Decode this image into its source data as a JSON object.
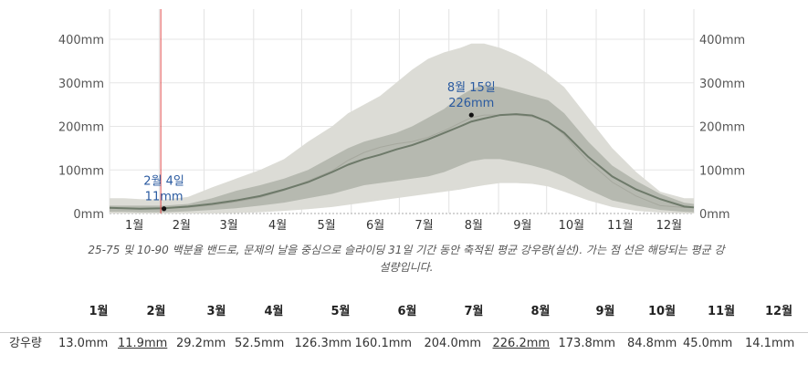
{
  "chart_data": {
    "type": "area",
    "y_tick_labels": [
      "0mm",
      "100mm",
      "200mm",
      "300mm",
      "400mm"
    ],
    "ylim": [
      0,
      400
    ],
    "months": [
      "1월",
      "2월",
      "3월",
      "4월",
      "5월",
      "6월",
      "7월",
      "8월",
      "9월",
      "10월",
      "11월",
      "12월"
    ],
    "x": [
      1,
      10,
      20,
      35,
      50,
      65,
      80,
      95,
      110,
      125,
      140,
      150,
      160,
      170,
      180,
      190,
      200,
      210,
      220,
      227,
      235,
      245,
      255,
      265,
      275,
      285,
      300,
      315,
      330,
      345,
      360,
      366
    ],
    "series": [
      {
        "values": [
          13,
          12,
          11,
          12,
          16,
          22,
          30,
          40,
          55,
          72,
          95,
          112,
          125,
          135,
          147,
          157,
          170,
          185,
          200,
          211,
          218,
          226,
          228,
          225,
          210,
          185,
          130,
          85,
          55,
          33,
          16,
          14
        ]
      },
      {
        "values": [
          12,
          12,
          11,
          12,
          14,
          19,
          27,
          37,
          53,
          75,
          98,
          122,
          140,
          152,
          160,
          165,
          175,
          190,
          208,
          220,
          226,
          226,
          226,
          222,
          212,
          180,
          120,
          72,
          40,
          18,
          14,
          13
        ]
      },
      {
        "values": [
          4,
          4,
          3,
          3,
          5,
          8,
          12,
          18,
          25,
          35,
          45,
          55,
          65,
          70,
          75,
          80,
          85,
          95,
          110,
          120,
          125,
          125,
          118,
          110,
          100,
          85,
          55,
          30,
          18,
          8,
          4,
          3
        ]
      },
      {
        "values": [
          18,
          18,
          18,
          18,
          22,
          35,
          52,
          65,
          80,
          100,
          130,
          150,
          165,
          175,
          185,
          200,
          220,
          240,
          270,
          285,
          295,
          290,
          280,
          270,
          260,
          230,
          165,
          110,
          75,
          45,
          25,
          22
        ]
      },
      {
        "values": [
          0,
          0,
          0,
          0,
          0,
          0,
          1,
          3,
          6,
          10,
          15,
          20,
          25,
          30,
          35,
          40,
          45,
          50,
          55,
          60,
          65,
          70,
          70,
          68,
          62,
          50,
          30,
          15,
          6,
          2,
          0,
          0
        ]
      },
      {
        "values": [
          35,
          35,
          33,
          32,
          38,
          60,
          80,
          100,
          125,
          165,
          200,
          230,
          250,
          270,
          300,
          330,
          355,
          370,
          380,
          390,
          390,
          380,
          365,
          345,
          320,
          290,
          220,
          150,
          95,
          50,
          35,
          35
        ]
      }
    ],
    "highlights": [
      {
        "label_date": "2월 4일",
        "label_value": "11mm",
        "x": 35,
        "value": 11
      },
      {
        "label_date": "8월 15일",
        "label_value": "226mm",
        "x": 227,
        "value": 226
      }
    ],
    "today_x": 33
  },
  "caption": "25-75 및 10-90 백분율 밴드로, 문제의 날을 중심으로 슬라이딩 31일 기간 동안 축적된 평균 강우량(실선). 가는 점 선은 해당되는 평균 강설량입니다.",
  "table": {
    "row_label": "강우량",
    "months": [
      "1월",
      "2월",
      "3월",
      "4월",
      "5월",
      "6월",
      "7월",
      "8월",
      "9월",
      "10월",
      "11월",
      "12월"
    ],
    "values": [
      "13.0mm",
      "11.9mm",
      "29.2mm",
      "52.5mm",
      "126.3mm",
      "160.1mm",
      "204.0mm",
      "226.2mm",
      "173.8mm",
      "84.8mm",
      "45.0mm",
      "14.1mm"
    ]
  }
}
